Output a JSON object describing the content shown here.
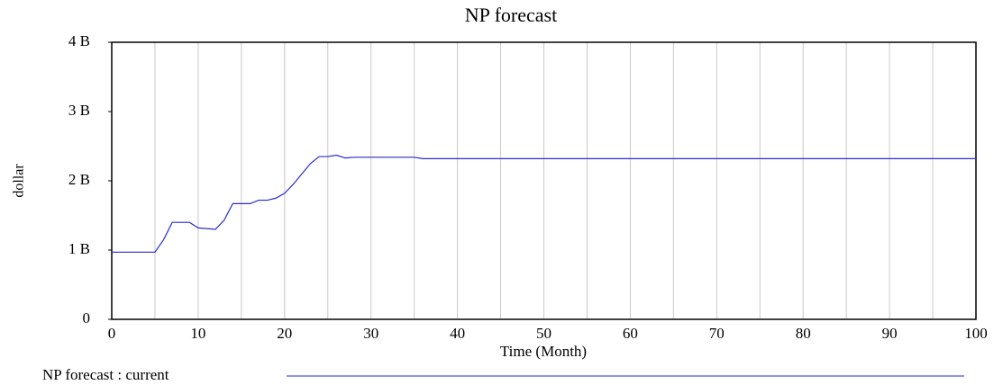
{
  "chart_data": {
    "type": "line",
    "title": "NP forecast",
    "x_label": "Time (Month)",
    "y_label": "dollar",
    "x": [
      0,
      1,
      2,
      3,
      4,
      5,
      6,
      7,
      8,
      9,
      10,
      11,
      12,
      13,
      14,
      15,
      16,
      17,
      18,
      19,
      20,
      21,
      22,
      23,
      24,
      25,
      26,
      27,
      28,
      29,
      30,
      31,
      32,
      33,
      34,
      35,
      36,
      37,
      38,
      39,
      40,
      41,
      42,
      43,
      44,
      45,
      46,
      47,
      48,
      49,
      50,
      51,
      52,
      53,
      54,
      55,
      56,
      57,
      58,
      59,
      60,
      61,
      62,
      63,
      64,
      65,
      66,
      67,
      68,
      69,
      70,
      71,
      72,
      73,
      74,
      75,
      76,
      77,
      78,
      79,
      80,
      81,
      82,
      83,
      84,
      85,
      86,
      87,
      88,
      89,
      90,
      91,
      92,
      93,
      94,
      95,
      96,
      97,
      98,
      99,
      100
    ],
    "series": [
      {
        "name": "NP forecast : current",
        "color": "#2a2ad0",
        "values": [
          970000000,
          970000000,
          970000000,
          970000000,
          970000000,
          970000000,
          1150000000,
          1400000000,
          1400000000,
          1400000000,
          1320000000,
          1310000000,
          1300000000,
          1430000000,
          1670000000,
          1670000000,
          1670000000,
          1720000000,
          1720000000,
          1750000000,
          1820000000,
          1950000000,
          2100000000,
          2250000000,
          2350000000,
          2350000000,
          2370000000,
          2330000000,
          2340000000,
          2340000000,
          2340000000,
          2340000000,
          2340000000,
          2340000000,
          2340000000,
          2340000000,
          2320000000,
          2320000000,
          2320000000,
          2320000000,
          2320000000,
          2320000000,
          2320000000,
          2320000000,
          2320000000,
          2320000000,
          2320000000,
          2320000000,
          2320000000,
          2320000000,
          2320000000,
          2320000000,
          2320000000,
          2320000000,
          2320000000,
          2320000000,
          2320000000,
          2320000000,
          2320000000,
          2320000000,
          2320000000,
          2320000000,
          2320000000,
          2320000000,
          2320000000,
          2320000000,
          2320000000,
          2320000000,
          2320000000,
          2320000000,
          2320000000,
          2320000000,
          2320000000,
          2320000000,
          2320000000,
          2320000000,
          2320000000,
          2320000000,
          2320000000,
          2320000000,
          2320000000,
          2320000000,
          2320000000,
          2320000000,
          2320000000,
          2320000000,
          2320000000,
          2320000000,
          2320000000,
          2320000000,
          2320000000,
          2320000000,
          2320000000,
          2320000000,
          2320000000,
          2320000000,
          2320000000,
          2320000000,
          2320000000,
          2320000000,
          2320000000
        ]
      }
    ],
    "xlim": [
      0,
      100
    ],
    "xticks": [
      0,
      10,
      20,
      30,
      40,
      50,
      60,
      70,
      80,
      90,
      100
    ],
    "ylim": [
      0,
      4000000000
    ],
    "yticks": [
      0,
      {
        "value": 1000000000,
        "label": "1 B"
      },
      {
        "value": 2000000000,
        "label": "2 B"
      },
      {
        "value": 3000000000,
        "label": "3 B"
      },
      {
        "value": 4000000000,
        "label": "4 B"
      }
    ],
    "grid": true
  }
}
